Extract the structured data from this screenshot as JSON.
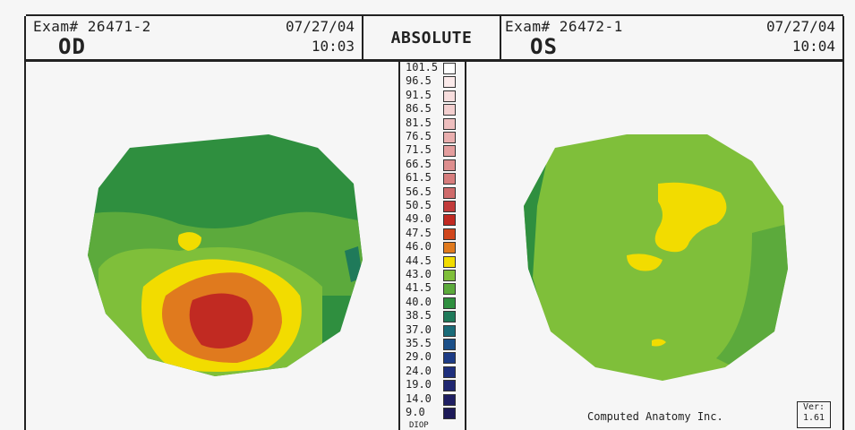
{
  "left": {
    "exam": "Exam# 26471-2",
    "date": "07/27/04",
    "time": "10:03",
    "eye": "OD"
  },
  "right": {
    "exam": "Exam# 26472-1",
    "date": "07/27/04",
    "time": "10:04",
    "eye": "OS"
  },
  "center_title": "ABSOLUTE",
  "scale": {
    "unit": "DIOP",
    "levels": [
      {
        "label": "101.5",
        "color": "#ffffff"
      },
      {
        "label": "96.5",
        "color": "#fbeaea"
      },
      {
        "label": "91.5",
        "color": "#f7dddd"
      },
      {
        "label": "86.5",
        "color": "#f3cfcf"
      },
      {
        "label": "81.5",
        "color": "#eebebe"
      },
      {
        "label": "76.5",
        "color": "#e9aeae"
      },
      {
        "label": "71.5",
        "color": "#e49e9e"
      },
      {
        "label": "66.5",
        "color": "#de8e8e"
      },
      {
        "label": "61.5",
        "color": "#d77d7d"
      },
      {
        "label": "56.5",
        "color": "#cf6b6b"
      },
      {
        "label": "50.5",
        "color": "#c23b3b"
      },
      {
        "label": "49.0",
        "color": "#c12a22"
      },
      {
        "label": "47.5",
        "color": "#d0461c"
      },
      {
        "label": "46.0",
        "color": "#e07a1e"
      },
      {
        "label": "44.5",
        "color": "#f2dc00"
      },
      {
        "label": "43.0",
        "color": "#7fbf3a"
      },
      {
        "label": "41.5",
        "color": "#5caa3c"
      },
      {
        "label": "40.0",
        "color": "#2f8f3f"
      },
      {
        "label": "38.5",
        "color": "#1f7a5a"
      },
      {
        "label": "37.0",
        "color": "#1a6b78"
      },
      {
        "label": "35.5",
        "color": "#1b4f88"
      },
      {
        "label": "29.0",
        "color": "#1d3c86"
      },
      {
        "label": "24.0",
        "color": "#1e2f7d"
      },
      {
        "label": "19.0",
        "color": "#1f2670"
      },
      {
        "label": "14.0",
        "color": "#1f1f63"
      },
      {
        "label": "9.0",
        "color": "#1d1a58"
      }
    ]
  },
  "footer": {
    "company": "Computed Anatomy Inc.",
    "ver_label": "Ver:",
    "ver_value": "1.61"
  }
}
